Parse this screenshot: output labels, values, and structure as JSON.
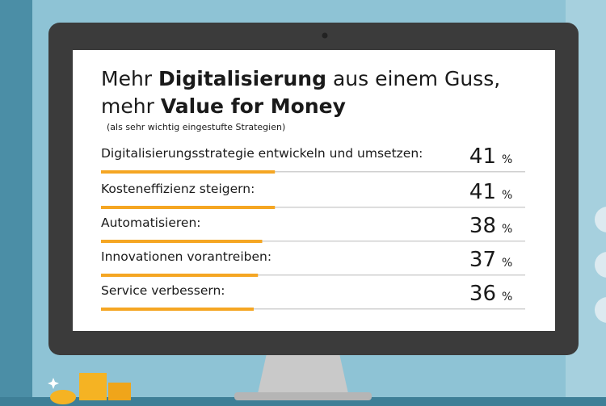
{
  "chart_data": {
    "type": "bar",
    "title_lines": [
      [
        {
          "text": "Mehr ",
          "bold": false
        },
        {
          "text": "Digitalisierung",
          "bold": true
        },
        {
          "text": " aus einem Guss,",
          "bold": false
        }
      ],
      [
        {
          "text": "mehr ",
          "bold": false
        },
        {
          "text": "Value for Money",
          "bold": true
        }
      ]
    ],
    "subtitle": "(als sehr wichtig eingestufte Strategien)",
    "categories": [
      "Digitalisierungsstrategie entwickeln und umsetzen:",
      "Kosteneffizienz steigern:",
      "Automatisieren:",
      "Innovationen vorantreiben:",
      "Service verbessern:"
    ],
    "values": [
      41,
      41,
      38,
      37,
      36
    ],
    "value_unit": "%",
    "color": "#f5a623",
    "xlim": [
      0,
      100
    ]
  }
}
